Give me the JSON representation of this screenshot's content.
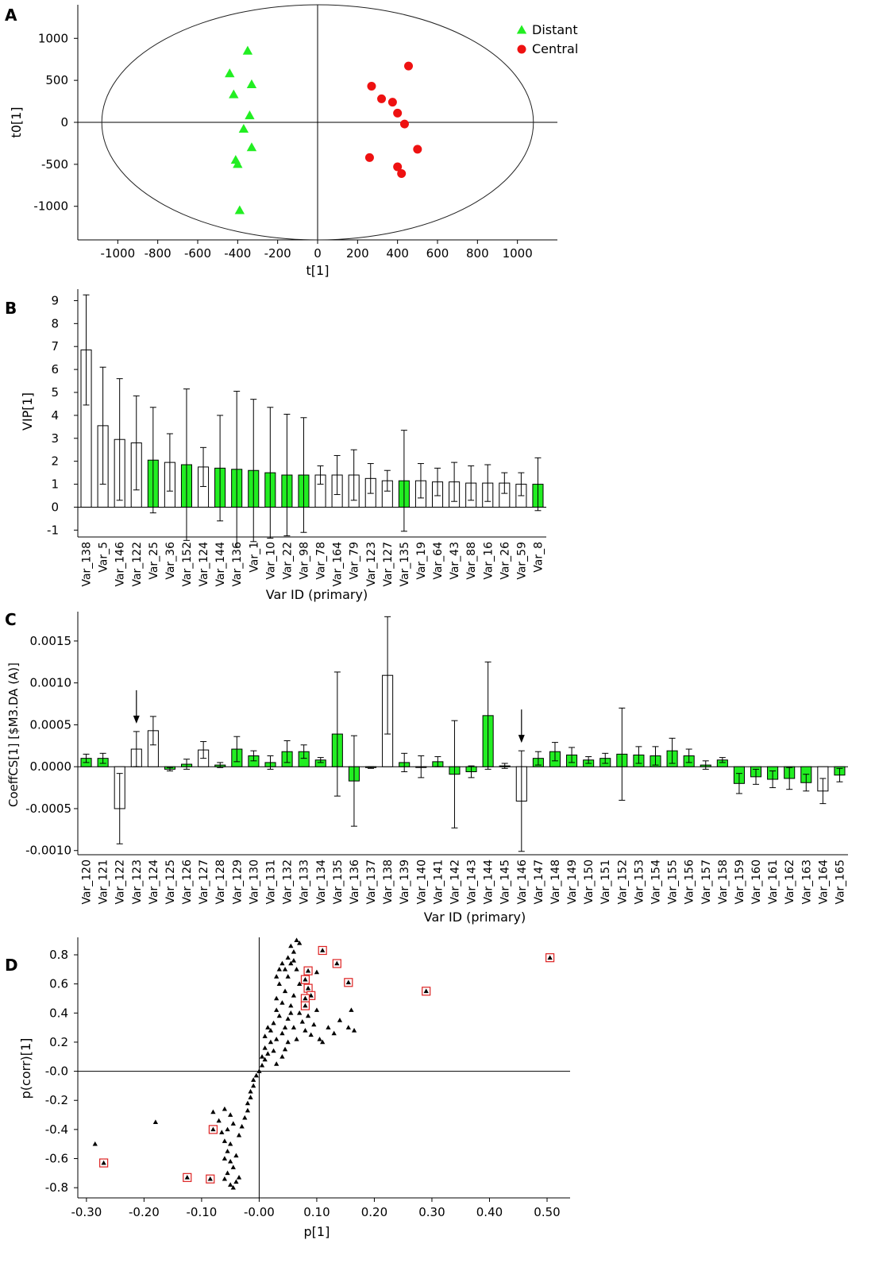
{
  "colors": {
    "green": "#22ee22",
    "red": "#ee1111",
    "black": "#000000",
    "highlight_box": "#dd2222"
  },
  "chart_data": [
    {
      "panel": "A",
      "type": "scatter",
      "xlabel": "t[1]",
      "ylabel": "t0[1]",
      "xlim": [
        -1200,
        1200
      ],
      "ylim": [
        -1400,
        1400
      ],
      "xticks": [
        -1000,
        -800,
        -600,
        -400,
        -200,
        0,
        200,
        400,
        600,
        800,
        1000
      ],
      "yticks": [
        -1000,
        -500,
        0,
        500,
        1000
      ],
      "ellipse": {
        "rx": 1080,
        "ry": 1400
      },
      "legend_position": "top-right",
      "series": [
        {
          "name": "Distant",
          "marker": "triangle",
          "color": "#22ee22",
          "points": [
            [
              -350,
              850
            ],
            [
              -440,
              580
            ],
            [
              -330,
              450
            ],
            [
              -420,
              330
            ],
            [
              -340,
              80
            ],
            [
              -370,
              -80
            ],
            [
              -330,
              -300
            ],
            [
              -410,
              -450
            ],
            [
              -400,
              -500
            ],
            [
              -390,
              -1050
            ]
          ]
        },
        {
          "name": "Central",
          "marker": "circle",
          "color": "#ee1111",
          "points": [
            [
              455,
              670
            ],
            [
              270,
              430
            ],
            [
              320,
              280
            ],
            [
              375,
              240
            ],
            [
              400,
              110
            ],
            [
              435,
              -20
            ],
            [
              500,
              -320
            ],
            [
              260,
              -420
            ],
            [
              400,
              -530
            ],
            [
              420,
              -610
            ]
          ]
        }
      ]
    },
    {
      "panel": "B",
      "type": "bar",
      "xlabel": "Var ID (primary)",
      "ylabel": "VIP[1]",
      "ylim": [
        -1.3,
        9.5
      ],
      "yticks": [
        -1,
        0,
        1,
        2,
        3,
        4,
        5,
        6,
        7,
        8,
        9
      ],
      "categories": [
        "Var_138",
        "Var_5",
        "Var_146",
        "Var_122",
        "Var_25",
        "Var_36",
        "Var_152",
        "Var_124",
        "Var_144",
        "Var_136",
        "Var_1",
        "Var_10",
        "Var_22",
        "Var_98",
        "Var_78",
        "Var_164",
        "Var_79",
        "Var_123",
        "Var_127",
        "Var_135",
        "Var_19",
        "Var_64",
        "Var_43",
        "Var_88",
        "Var_16",
        "Var_26",
        "Var_59",
        "Var_8"
      ],
      "values": [
        6.85,
        3.55,
        2.95,
        2.8,
        2.05,
        1.95,
        1.85,
        1.75,
        1.7,
        1.65,
        1.6,
        1.5,
        1.4,
        1.4,
        1.4,
        1.4,
        1.4,
        1.25,
        1.15,
        1.15,
        1.15,
        1.1,
        1.1,
        1.05,
        1.05,
        1.05,
        1.0,
        1.0
      ],
      "errors": [
        2.4,
        2.55,
        2.65,
        2.05,
        2.3,
        1.25,
        3.3,
        0.85,
        2.3,
        3.4,
        3.1,
        2.85,
        2.65,
        2.5,
        0.4,
        0.85,
        1.1,
        0.65,
        0.45,
        2.2,
        0.75,
        0.6,
        0.85,
        0.75,
        0.8,
        0.45,
        0.5,
        1.15
      ],
      "green": [
        false,
        false,
        false,
        false,
        true,
        false,
        true,
        false,
        true,
        true,
        true,
        true,
        true,
        true,
        false,
        false,
        false,
        false,
        false,
        true,
        false,
        false,
        false,
        false,
        false,
        false,
        false,
        true
      ]
    },
    {
      "panel": "C",
      "type": "bar",
      "xlabel": "Var ID (primary)",
      "ylabel": "CoeffCS[1] [$M3.DA (A)]",
      "ylim": [
        -0.00105,
        0.00185
      ],
      "yticks": [
        -0.001,
        -0.0005,
        0,
        0.0005,
        0.001,
        0.0015
      ],
      "ytick_labels": [
        "-0.0010",
        "-0.0005",
        "0.0000",
        "0.0005",
        "0.0010",
        "0.0015"
      ],
      "categories": [
        "Var_120",
        "Var_121",
        "Var_122",
        "Var_123",
        "Var_124",
        "Var_125",
        "Var_126",
        "Var_127",
        "Var_128",
        "Var_129",
        "Var_130",
        "Var_131",
        "Var_132",
        "Var_133",
        "Var_134",
        "Var_135",
        "Var_136",
        "Var_137",
        "Var_138",
        "Var_139",
        "Var_140",
        "Var_141",
        "Var_142",
        "Var_143",
        "Var_144",
        "Var_145",
        "Var_146",
        "Var_147",
        "Var_148",
        "Var_149",
        "Var_150",
        "Var_151",
        "Var_152",
        "Var_153",
        "Var_154",
        "Var_155",
        "Var_156",
        "Var_157",
        "Var_158",
        "Var_159",
        "Var_160",
        "Var_161",
        "Var_162",
        "Var_163",
        "Var_164",
        "Var_165"
      ],
      "values": [
        0.0001,
        0.0001,
        -0.0005,
        0.00021,
        0.00043,
        -3e-05,
        3e-05,
        0.0002,
        2e-05,
        0.00021,
        0.00013,
        5e-05,
        0.00018,
        0.00018,
        8e-05,
        0.00039,
        -0.00017,
        -1e-05,
        0.00109,
        5e-05,
        0.0,
        6e-05,
        -9e-05,
        -6e-05,
        0.00061,
        1e-05,
        -0.00041,
        0.0001,
        0.00018,
        0.00014,
        8e-05,
        0.0001,
        0.00015,
        0.00014,
        0.00013,
        0.00019,
        0.00013,
        2e-05,
        8e-05,
        -0.0002,
        -0.00012,
        -0.00015,
        -0.00014,
        -0.00019,
        -0.00029,
        -0.0001
      ],
      "errors": [
        5e-05,
        6e-05,
        0.00042,
        0.00021,
        0.00017,
        2e-05,
        6e-05,
        0.0001,
        3e-05,
        0.00015,
        6e-05,
        8e-05,
        0.00013,
        8e-05,
        3e-05,
        0.00074,
        0.00054,
        1e-05,
        0.0007,
        0.00011,
        0.00013,
        6e-05,
        0.00064,
        7e-05,
        0.00064,
        3e-05,
        0.0006,
        8e-05,
        0.00011,
        9e-05,
        4e-05,
        6e-05,
        0.00055,
        0.0001,
        0.00011,
        0.00015,
        8e-05,
        5e-05,
        3e-05,
        0.00012,
        9e-05,
        0.0001,
        0.00013,
        0.0001,
        0.00015,
        8e-05
      ],
      "green": [
        true,
        true,
        false,
        false,
        false,
        true,
        true,
        false,
        true,
        true,
        true,
        true,
        true,
        true,
        true,
        true,
        true,
        true,
        false,
        true,
        true,
        true,
        true,
        true,
        true,
        true,
        false,
        true,
        true,
        true,
        true,
        true,
        true,
        true,
        true,
        true,
        true,
        true,
        true,
        true,
        true,
        true,
        true,
        true,
        false,
        true
      ],
      "arrows": [
        "Var_123",
        "Var_146"
      ]
    },
    {
      "panel": "D",
      "type": "scatter",
      "xlabel": "p[1]",
      "ylabel": "p(corr)[1]",
      "xlim": [
        -0.315,
        0.54
      ],
      "ylim": [
        -0.87,
        0.92
      ],
      "xticks": [
        -0.3,
        -0.2,
        -0.1,
        0,
        0.1,
        0.2,
        0.3,
        0.4,
        0.5
      ],
      "xtick_labels": [
        "-0.30",
        "-0.20",
        "-0.10",
        "-0.00",
        "0.10",
        "0.20",
        "0.30",
        "0.40",
        "0.50"
      ],
      "yticks": [
        -0.8,
        -0.6,
        -0.4,
        -0.2,
        0,
        0.2,
        0.4,
        0.6,
        0.8
      ],
      "ytick_labels": [
        "-0.8",
        "-0.6",
        "-0.4",
        "-0.2",
        "-0.0",
        "0.2",
        "0.4",
        "0.6",
        "0.8"
      ],
      "points": [
        [
          -0.285,
          -0.5
        ],
        [
          -0.18,
          -0.35
        ],
        [
          -0.06,
          -0.26
        ],
        [
          -0.08,
          -0.28
        ],
        [
          -0.05,
          -0.3
        ],
        [
          -0.055,
          -0.4
        ],
        [
          -0.065,
          -0.42
        ],
        [
          -0.07,
          -0.34
        ],
        [
          -0.045,
          -0.36
        ],
        [
          -0.06,
          -0.48
        ],
        [
          -0.05,
          -0.5
        ],
        [
          -0.055,
          -0.55
        ],
        [
          -0.06,
          -0.6
        ],
        [
          -0.05,
          -0.62
        ],
        [
          -0.045,
          -0.66
        ],
        [
          -0.055,
          -0.7
        ],
        [
          -0.06,
          -0.74
        ],
        [
          -0.05,
          -0.78
        ],
        [
          -0.04,
          -0.76
        ],
        [
          -0.035,
          -0.73
        ],
        [
          -0.045,
          -0.8
        ],
        [
          -0.04,
          -0.58
        ],
        [
          -0.035,
          -0.44
        ],
        [
          -0.03,
          -0.38
        ],
        [
          -0.025,
          -0.32
        ],
        [
          -0.02,
          -0.27
        ],
        [
          -0.02,
          -0.22
        ],
        [
          -0.015,
          -0.18
        ],
        [
          -0.015,
          -0.14
        ],
        [
          -0.01,
          -0.1
        ],
        [
          -0.01,
          -0.06
        ],
        [
          -0.005,
          -0.03
        ],
        [
          0.0,
          0.0
        ],
        [
          0.005,
          0.04
        ],
        [
          0.01,
          0.08
        ],
        [
          0.015,
          0.12
        ],
        [
          0.005,
          0.1
        ],
        [
          0.01,
          0.16
        ],
        [
          0.02,
          0.2
        ],
        [
          0.01,
          0.24
        ],
        [
          0.02,
          0.28
        ],
        [
          0.03,
          0.22
        ],
        [
          0.025,
          0.33
        ],
        [
          0.035,
          0.38
        ],
        [
          0.03,
          0.42
        ],
        [
          0.04,
          0.47
        ],
        [
          0.03,
          0.5
        ],
        [
          0.045,
          0.55
        ],
        [
          0.035,
          0.6
        ],
        [
          0.05,
          0.65
        ],
        [
          0.045,
          0.7
        ],
        [
          0.055,
          0.74
        ],
        [
          0.05,
          0.78
        ],
        [
          0.06,
          0.82
        ],
        [
          0.055,
          0.86
        ],
        [
          0.065,
          0.9
        ],
        [
          0.07,
          0.88
        ],
        [
          0.06,
          0.76
        ],
        [
          0.065,
          0.7
        ],
        [
          0.07,
          0.6
        ],
        [
          0.06,
          0.52
        ],
        [
          0.055,
          0.45
        ],
        [
          0.05,
          0.36
        ],
        [
          0.06,
          0.3
        ],
        [
          0.065,
          0.22
        ],
        [
          0.07,
          0.4
        ],
        [
          0.075,
          0.34
        ],
        [
          0.08,
          0.28
        ],
        [
          0.085,
          0.38
        ],
        [
          0.09,
          0.25
        ],
        [
          0.095,
          0.32
        ],
        [
          0.1,
          0.42
        ],
        [
          0.1,
          0.68
        ],
        [
          0.105,
          0.22
        ],
        [
          0.11,
          0.2
        ],
        [
          0.12,
          0.3
        ],
        [
          0.13,
          0.26
        ],
        [
          0.14,
          0.35
        ],
        [
          0.155,
          0.3
        ],
        [
          0.16,
          0.42
        ],
        [
          0.165,
          0.28
        ],
        [
          0.045,
          0.15
        ],
        [
          0.04,
          0.1
        ],
        [
          0.03,
          0.05
        ],
        [
          0.025,
          0.14
        ],
        [
          0.015,
          0.3
        ],
        [
          0.04,
          0.26
        ],
        [
          0.05,
          0.2
        ],
        [
          0.045,
          0.3
        ],
        [
          0.055,
          0.4
        ],
        [
          0.035,
          0.7
        ],
        [
          0.04,
          0.74
        ],
        [
          0.03,
          0.65
        ]
      ],
      "highlighted": [
        [
          -0.27,
          -0.63
        ],
        [
          -0.125,
          -0.73
        ],
        [
          -0.085,
          -0.74
        ],
        [
          -0.08,
          -0.4
        ],
        [
          0.11,
          0.83
        ],
        [
          0.135,
          0.74
        ],
        [
          0.155,
          0.61
        ],
        [
          0.085,
          0.69
        ],
        [
          0.08,
          0.63
        ],
        [
          0.085,
          0.57
        ],
        [
          0.09,
          0.52
        ],
        [
          0.08,
          0.5
        ],
        [
          0.08,
          0.45
        ],
        [
          0.29,
          0.55
        ],
        [
          0.505,
          0.78
        ]
      ]
    }
  ]
}
